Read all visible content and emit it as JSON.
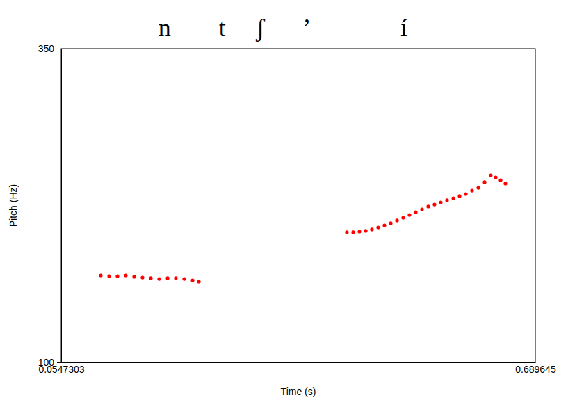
{
  "chart_data": {
    "type": "scatter",
    "segment_labels": [
      "n",
      "t",
      "ʃ",
      "’",
      "í"
    ],
    "x_label": "Time (s)",
    "y_label": "Pitch (Hz)",
    "xlim": [
      0.0547303,
      0.689645
    ],
    "xticks": [
      0.0547303,
      0.689645
    ],
    "ylim": [
      100,
      350
    ],
    "yticks": [
      100,
      350
    ],
    "grid": false,
    "color": "#ff0000",
    "marker": "circle",
    "x": [
      0.1078,
      0.119,
      0.1301,
      0.1413,
      0.1525,
      0.1636,
      0.1748,
      0.186,
      0.1972,
      0.2083,
      0.2195,
      0.2307,
      0.2391,
      0.4373,
      0.4457,
      0.4541,
      0.4625,
      0.4708,
      0.4792,
      0.4876,
      0.496,
      0.5044,
      0.5127,
      0.5211,
      0.5295,
      0.5379,
      0.5463,
      0.5546,
      0.563,
      0.5714,
      0.5798,
      0.5882,
      0.5965,
      0.6049,
      0.6133,
      0.6217,
      0.63,
      0.6366,
      0.6431,
      0.6496
    ],
    "values": [
      169.3,
      168.7,
      168.7,
      169.3,
      168.2,
      167.6,
      167.1,
      166.5,
      167.1,
      167.1,
      166.5,
      165.4,
      164.3,
      203.7,
      203.7,
      204.2,
      204.8,
      205.9,
      207.5,
      209.2,
      210.9,
      213.1,
      215.3,
      217.5,
      219.7,
      221.9,
      224.2,
      225.8,
      227.5,
      229.2,
      230.8,
      232.5,
      234.1,
      236.9,
      239.1,
      243.6,
      249.1,
      247.4,
      245.2,
      242.5
    ]
  }
}
